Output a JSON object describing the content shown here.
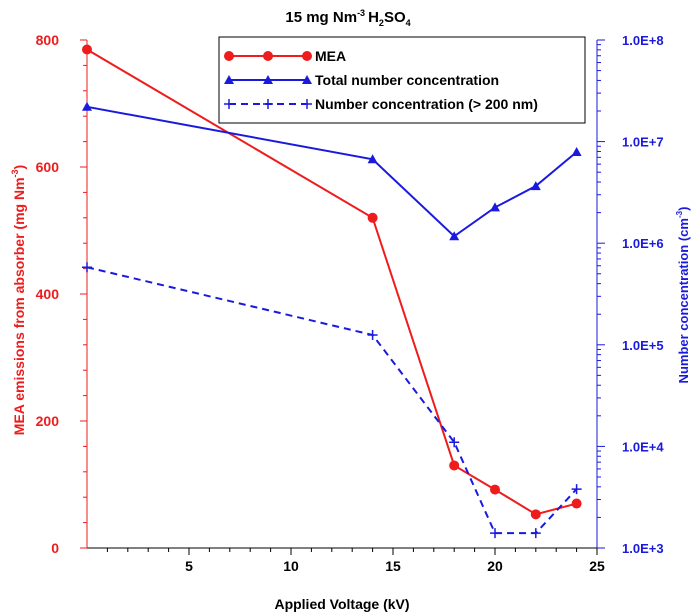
{
  "chart_data": {
    "type": "line",
    "title_main": "15 mg Nm",
    "title_sup": "-3",
    "title_chem": "H",
    "title_sub1": "2",
    "title_chem2": "SO",
    "title_sub2": "4",
    "xlabel": "Applied Voltage (kV)",
    "ylabel_left_main": "MEA emissions from absorber  (mg Nm",
    "ylabel_left_sup": "-3",
    "ylabel_left_end": ")",
    "ylabel_right_main": "Number concentration (cm",
    "ylabel_right_sup": "-3",
    "ylabel_right_end": ")",
    "xlim": [
      0,
      25
    ],
    "ylim_left": [
      0,
      800
    ],
    "ylim_right": [
      1000,
      100000000
    ],
    "right_log_scale": true,
    "x_ticks": [
      5,
      10,
      15,
      20,
      25
    ],
    "y_left_ticks": [
      0,
      200,
      400,
      600,
      800
    ],
    "y_right_ticks": [
      "1.0E+3",
      "1.0E+4",
      "1.0E+5",
      "1.0E+6",
      "1.0E+7",
      "1.0E+8"
    ],
    "legend_position": "top-right",
    "series": [
      {
        "name": "MEA",
        "axis": "left",
        "color": "#ee1c1c",
        "style": "solid",
        "marker": "circle",
        "x": [
          0,
          14,
          18,
          20,
          22,
          24
        ],
        "y": [
          785,
          520,
          130,
          92,
          53,
          70
        ]
      },
      {
        "name": "Total number concentration",
        "axis": "right",
        "color": "#1a1adf",
        "style": "solid",
        "marker": "triangle",
        "x": [
          0,
          14,
          18,
          20,
          22,
          24
        ],
        "y": [
          22000000,
          6700000,
          1170000,
          2250000,
          3650000,
          7900000
        ]
      },
      {
        "name": "Number concentration (> 200 nm)",
        "axis": "right",
        "color": "#1a1adf",
        "style": "dashed",
        "marker": "plus",
        "x": [
          0,
          14,
          18,
          20,
          22,
          24
        ],
        "y": [
          580000,
          125000,
          11000,
          1400,
          1400,
          3800
        ]
      }
    ]
  }
}
